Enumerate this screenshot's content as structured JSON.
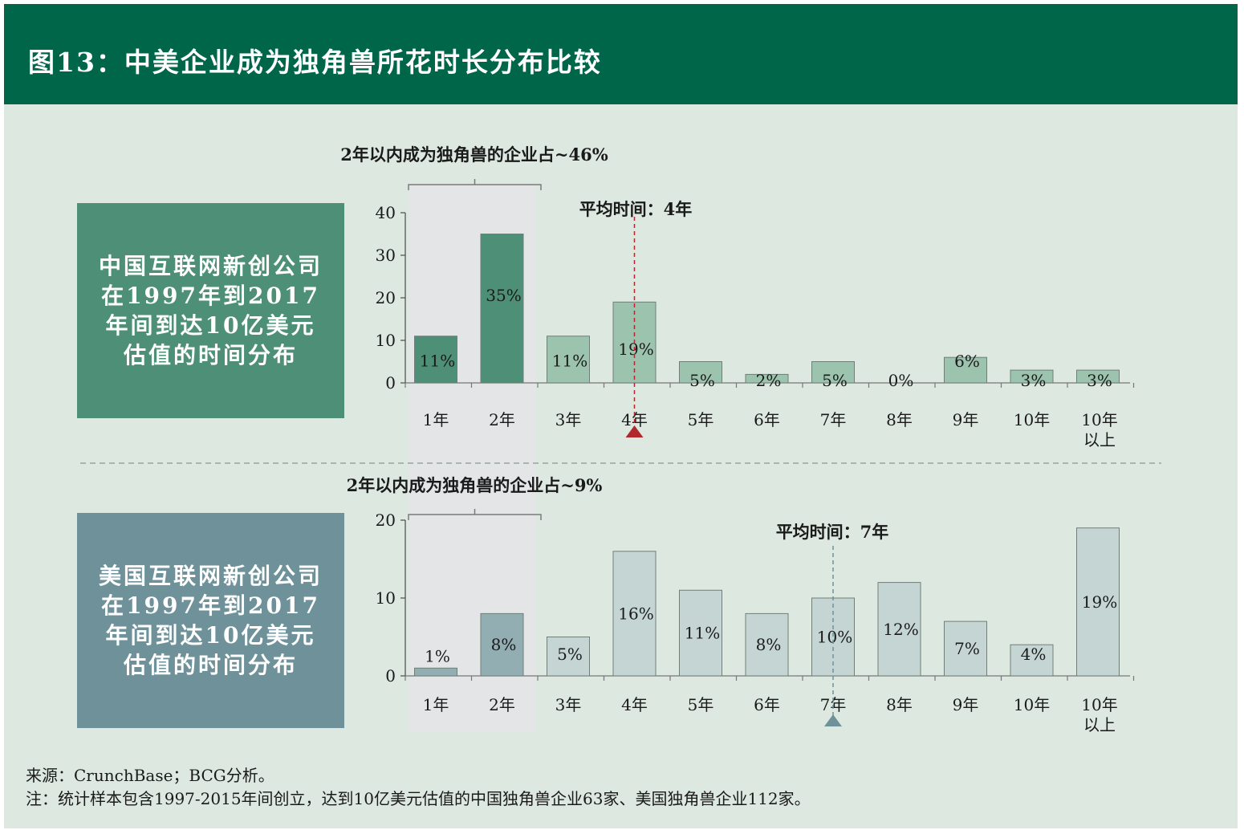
{
  "header": {
    "title": "图13：中美企业成为独角兽所花时长分布比较"
  },
  "colors": {
    "header_bg": "#00664a",
    "panel_bg": "#dde8e1",
    "china_box": "#4d8f77",
    "us_box": "#6f929a",
    "china_bar_dark": "#4d8f77",
    "china_bar_light": "#9cc3ae",
    "us_bar_dark": "#93aeb2",
    "us_bar_light": "#c5d5d4",
    "highlight_band": "#e4e5e6",
    "mean_cn": "#b0282e",
    "mean_us": "#6f929a"
  },
  "sidebar": {
    "china_label": "中国互联网新创公司在1997年到2017年间到达10亿美元估值的时间分布",
    "us_label": "美国互联网新创公司在1997年到2017年间到达10亿美元估值的时间分布"
  },
  "chart_data": [
    {
      "type": "bar",
      "categories": [
        "1年",
        "2年",
        "3年",
        "4年",
        "5年",
        "6年",
        "7年",
        "8年",
        "9年",
        "10年",
        "10年以上"
      ],
      "values": [
        11,
        35,
        11,
        19,
        5,
        2,
        5,
        0,
        6,
        3,
        3
      ],
      "value_labels": [
        "11%",
        "35%",
        "11%",
        "19%",
        "5%",
        "2%",
        "5%",
        "0%",
        "6%",
        "3%",
        "3%"
      ],
      "ylim": [
        0,
        40
      ],
      "yticks": [
        0,
        10,
        20,
        30,
        40
      ],
      "bracket_label": "2年以内成为独角兽的企业占~46%",
      "mean_label": "平均时间：4年",
      "mean_category_index": 3
    },
    {
      "type": "bar",
      "categories": [
        "1年",
        "2年",
        "3年",
        "4年",
        "5年",
        "6年",
        "7年",
        "8年",
        "9年",
        "10年",
        "10年以上"
      ],
      "values": [
        1,
        8,
        5,
        16,
        11,
        8,
        10,
        12,
        7,
        4,
        19
      ],
      "value_labels": [
        "1%",
        "8%",
        "5%",
        "16%",
        "11%",
        "8%",
        "10%",
        "12%",
        "7%",
        "4%",
        "19%"
      ],
      "ylim": [
        0,
        20
      ],
      "yticks": [
        0,
        10,
        20
      ],
      "bracket_label": "2年以内成为独角兽的企业占~9%",
      "mean_label": "平均时间：7年",
      "mean_category_index": 6
    }
  ],
  "notes": {
    "source": "来源：CrunchBase；BCG分析。",
    "footnote": "注：统计样本包含1997-2015年间创立，达到10亿美元估值的中国独角兽企业63家、美国独角兽企业112家。"
  }
}
